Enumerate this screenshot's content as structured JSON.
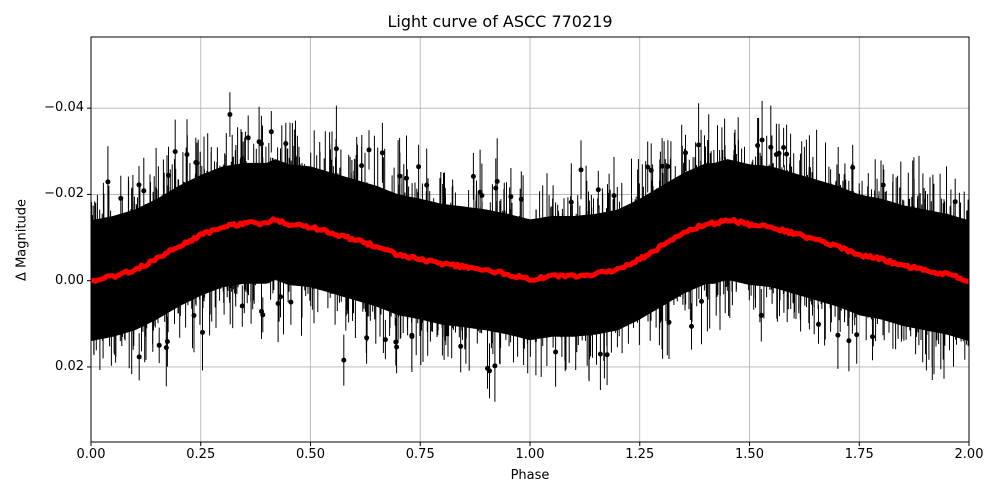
{
  "chart_data": {
    "type": "scatter",
    "title": "Light curve of ASCC 770219",
    "xlabel": "Phase",
    "ylabel": "Δ Magnitude",
    "xlim": [
      0.0,
      2.0
    ],
    "ylim": [
      0.0374,
      -0.0565
    ],
    "y_inverted": true,
    "grid": true,
    "x_ticks": [
      "0.00",
      "0.25",
      "0.50",
      "0.75",
      "1.00",
      "1.25",
      "1.50",
      "1.75",
      "2.00"
    ],
    "x_tick_values": [
      0.0,
      0.25,
      0.5,
      0.75,
      1.0,
      1.25,
      1.5,
      1.75,
      2.0
    ],
    "y_ticks": [
      "−0.04",
      "−0.02",
      "0.00",
      "0.02"
    ],
    "y_tick_values": [
      -0.04,
      -0.02,
      0.0,
      0.02
    ],
    "series": [
      {
        "name": "observations",
        "style": "errorbar points",
        "color": "#000000",
        "description": "dense black points with vertical error bars, scatter roughly ±0.03 around the binned curve"
      },
      {
        "name": "binned curve",
        "style": "thick line",
        "color": "#ff0000",
        "x": [
          0.0,
          0.05,
          0.1,
          0.15,
          0.2,
          0.25,
          0.3,
          0.35,
          0.4,
          0.42,
          0.45,
          0.5,
          0.55,
          0.6,
          0.65,
          0.7,
          0.75,
          0.8,
          0.85,
          0.9,
          0.95,
          1.0,
          1.05,
          1.1,
          1.15,
          1.2,
          1.25,
          1.3,
          1.35,
          1.4,
          1.42,
          1.45,
          1.5,
          1.55,
          1.6,
          1.65,
          1.7,
          1.75,
          1.8,
          1.85,
          1.9,
          1.95,
          2.0
        ],
        "y": [
          0.0,
          -0.001,
          -0.0025,
          -0.005,
          -0.008,
          -0.0105,
          -0.0125,
          -0.0133,
          -0.0133,
          -0.0142,
          -0.013,
          -0.0125,
          -0.011,
          -0.0095,
          -0.008,
          -0.006,
          -0.005,
          -0.0038,
          -0.0032,
          -0.0025,
          -0.0015,
          -0.0002,
          -0.001,
          -0.001,
          -0.0015,
          -0.0025,
          -0.005,
          -0.008,
          -0.011,
          -0.0132,
          -0.0133,
          -0.0142,
          -0.013,
          -0.0125,
          -0.011,
          -0.0095,
          -0.008,
          -0.006,
          -0.005,
          -0.0035,
          -0.0025,
          -0.0015,
          0.0
        ]
      }
    ]
  }
}
